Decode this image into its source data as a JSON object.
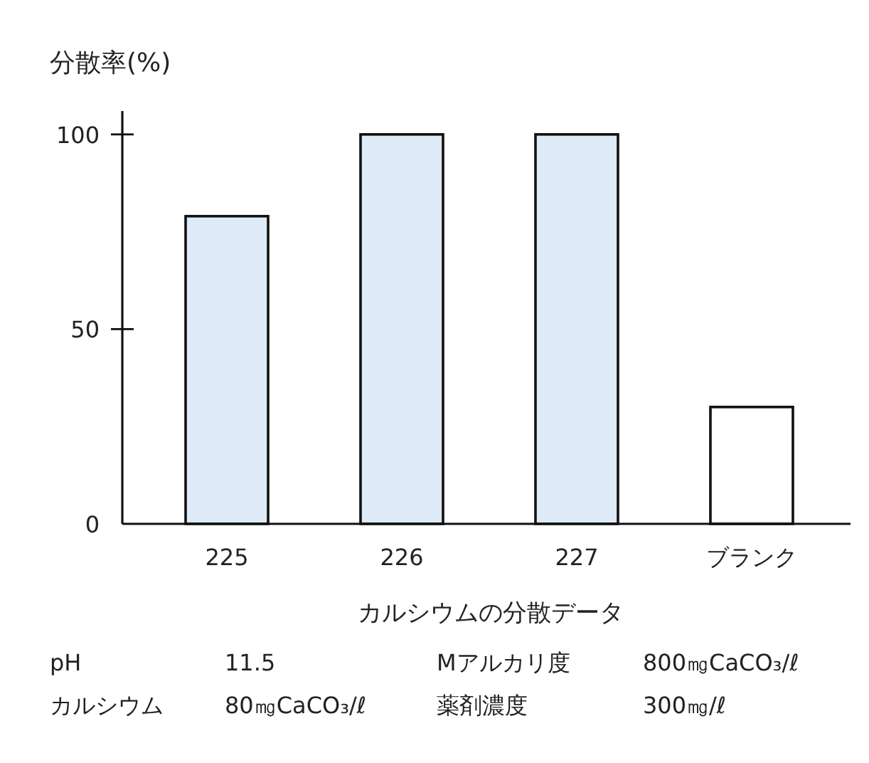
{
  "chart_data": {
    "type": "bar",
    "ylabel": "分散率(%)",
    "xlabel": "カルシウムの分散データ",
    "categories": [
      "225",
      "226",
      "227",
      "ブランク"
    ],
    "values": [
      79,
      100,
      100,
      30
    ],
    "colors": [
      "#deebf7",
      "#deebf7",
      "#deebf7",
      "#ffffff"
    ],
    "ylim": [
      0,
      106
    ],
    "yticks": [
      0,
      50,
      100
    ],
    "annotations": [
      "pH",
      "11.5",
      "Mアルカリ度",
      "800㎎CaCO₃/ℓ",
      "カルシウム",
      "80㎎CaCO₃/ℓ",
      "薬剤濃度",
      "300㎎/ℓ"
    ]
  }
}
